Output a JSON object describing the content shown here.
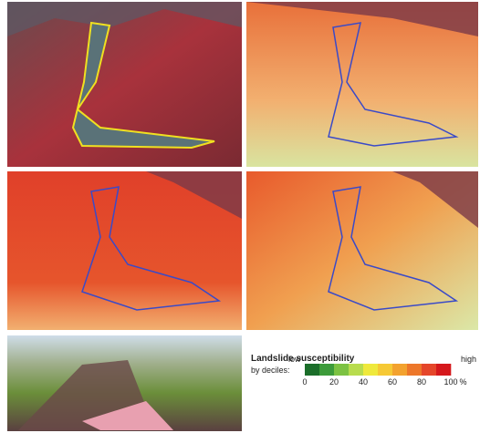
{
  "legend": {
    "title": "Landslide susceptibility",
    "subtitle": "by deciles:",
    "low": "low",
    "high": "high",
    "colors": [
      "#1b6e2a",
      "#3c9b3a",
      "#7cc242",
      "#b8dc4e",
      "#efe93c",
      "#f6c935",
      "#f3a22e",
      "#ed772a",
      "#e5462a",
      "#d5181c"
    ],
    "range": [
      0,
      100
    ],
    "ticks": [
      0,
      20,
      40,
      60,
      80,
      100
    ],
    "unit": "%"
  }
}
